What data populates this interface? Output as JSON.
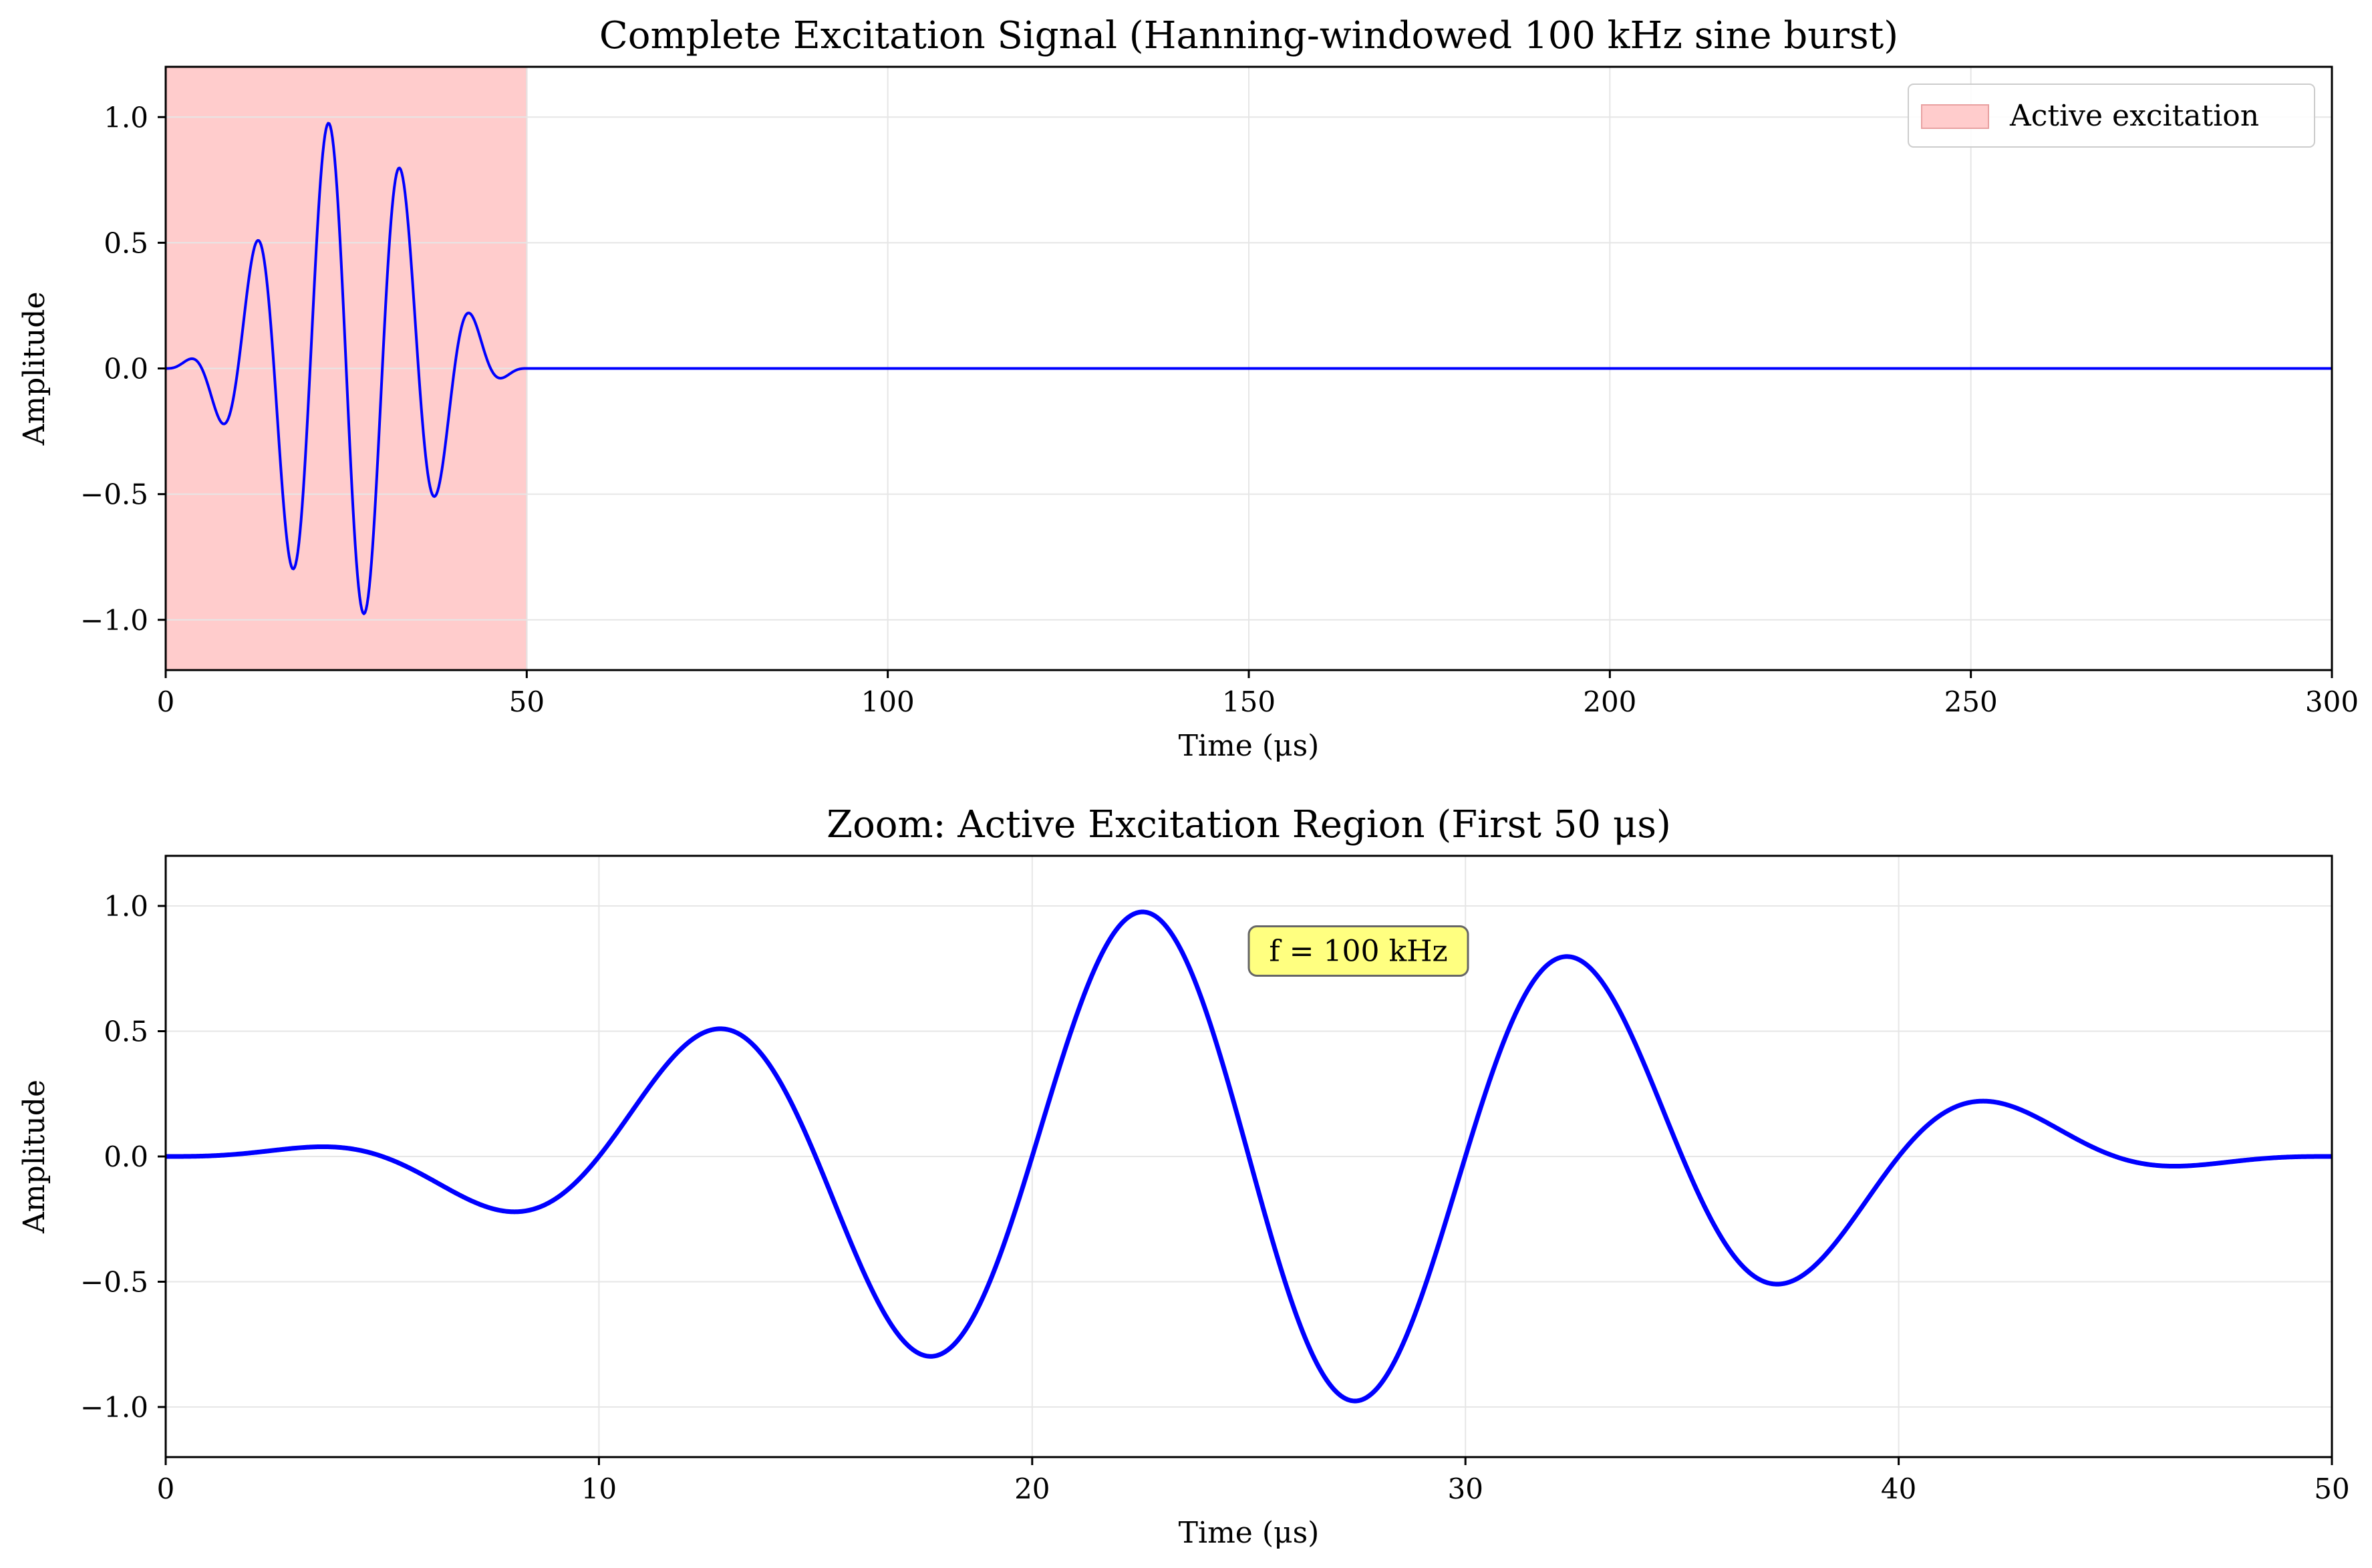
{
  "colors": {
    "signal": "#0000ff",
    "shade_fill": "#ffcccc",
    "shade_edge": "#e8a0a0",
    "grid": "#e6e6e6",
    "annotation_fill": "#ffff80",
    "annotation_edge": "#666666"
  },
  "signal_model": {
    "frequency_khz": 100,
    "duration_us": 50,
    "window": "hanning",
    "peak_amplitude": 1.0
  },
  "chart_data": [
    {
      "type": "line",
      "title": "Complete Excitation Signal (Hanning-windowed 100 kHz sine burst)",
      "xlabel": "Time (μs)",
      "ylabel": "Amplitude",
      "xlim": [
        0,
        300
      ],
      "ylim": [
        -1.2,
        1.2
      ],
      "xticks": [
        0,
        50,
        100,
        150,
        200,
        250,
        300
      ],
      "xtick_labels": [
        "0",
        "50",
        "100",
        "150",
        "200",
        "250",
        "300"
      ],
      "yticks": [
        -1.0,
        -0.5,
        0.0,
        0.5,
        1.0
      ],
      "ytick_labels": [
        "−1.0",
        "−0.5",
        "0.0",
        "0.5",
        "1.0"
      ],
      "grid": true,
      "shaded_region": {
        "x": [
          0,
          50
        ],
        "label": "Active excitation"
      },
      "legend": {
        "entries": [
          "Active excitation"
        ],
        "position": "top-right"
      },
      "series": [
        {
          "x_range": [
            0,
            300
          ],
          "line_width": 4
        }
      ]
    },
    {
      "type": "line",
      "title": "Zoom: Active Excitation Region (First 50 μs)",
      "xlabel": "Time (μs)",
      "ylabel": "Amplitude",
      "xlim": [
        0,
        50
      ],
      "ylim": [
        -1.2,
        1.2
      ],
      "xticks": [
        0,
        10,
        20,
        30,
        40,
        50
      ],
      "xtick_labels": [
        "0",
        "10",
        "20",
        "30",
        "40",
        "50"
      ],
      "yticks": [
        -1.0,
        -0.5,
        0.0,
        0.5,
        1.0
      ],
      "ytick_labels": [
        "−1.0",
        "−0.5",
        "0.0",
        "0.5",
        "1.0"
      ],
      "grid": true,
      "annotation": {
        "text": "f = 100 kHz",
        "x": 25,
        "y": 0.82
      },
      "series": [
        {
          "x_range": [
            0,
            50
          ],
          "line_width": 7
        }
      ]
    }
  ]
}
